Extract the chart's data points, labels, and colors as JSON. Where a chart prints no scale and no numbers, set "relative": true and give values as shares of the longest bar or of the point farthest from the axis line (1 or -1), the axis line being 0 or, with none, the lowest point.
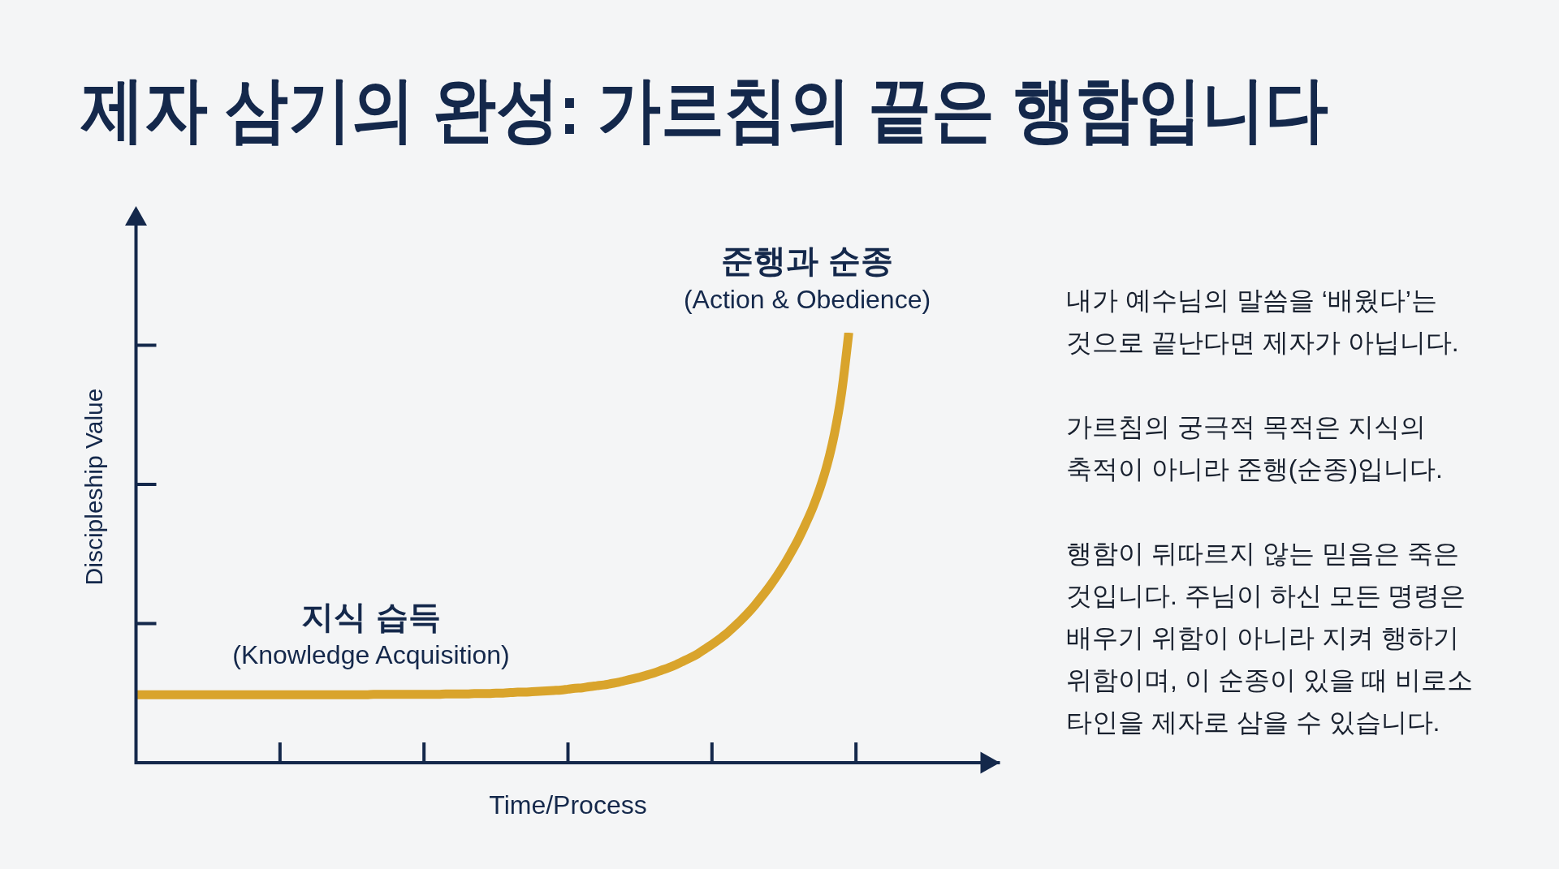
{
  "chart_data": {
    "type": "line",
    "title": "제자 삼기의 완성: 가르침의 끝은 행함입니다",
    "xlabel": "Time/Process",
    "ylabel": "Discipleship Value",
    "relative": true,
    "marker": "none",
    "color": "#d9a42c",
    "categories": [
      null,
      null,
      null,
      null,
      null,
      null,
      null,
      null,
      null,
      null,
      null,
      null,
      null,
      null,
      null,
      null,
      null,
      null,
      null,
      null,
      null,
      null,
      null,
      null,
      null,
      null,
      null,
      null,
      null,
      null,
      null,
      null,
      null,
      null,
      null,
      null,
      null,
      null,
      null,
      null,
      null,
      null,
      null,
      null,
      null,
      null,
      null,
      null,
      null,
      null,
      null,
      null,
      null,
      null,
      null,
      null,
      null,
      null,
      null,
      null,
      null,
      null,
      null,
      null,
      null,
      null,
      null,
      null,
      null,
      null,
      null,
      null,
      null,
      null,
      null,
      null,
      null,
      null,
      null,
      null,
      null,
      null,
      null,
      null,
      null,
      null,
      null,
      null,
      null,
      null,
      null,
      null,
      null,
      null,
      null,
      null,
      null,
      null,
      null,
      null,
      null,
      null,
      null,
      null,
      null,
      null,
      null,
      null,
      null,
      null,
      null,
      null,
      null,
      null,
      null,
      null,
      null,
      null,
      null,
      null,
      null
    ],
    "values": [
      0.158,
      0.158,
      0.158,
      0.158,
      0.158,
      0.158,
      0.158,
      0.158,
      0.158,
      0.158,
      0.158,
      0.158,
      0.158,
      0.158,
      0.158,
      0.158,
      0.158,
      0.158,
      0.158,
      0.158,
      0.158,
      0.158,
      0.158,
      0.158,
      0.158,
      0.158,
      0.158,
      0.158,
      0.158,
      0.158,
      0.158,
      0.158,
      0.158,
      0.159,
      0.159,
      0.159,
      0.159,
      0.159,
      0.159,
      0.159,
      0.159,
      0.159,
      0.159,
      0.16,
      0.16,
      0.16,
      0.16,
      0.161,
      0.161,
      0.161,
      0.162,
      0.162,
      0.163,
      0.164,
      0.164,
      0.165,
      0.166,
      0.167,
      0.168,
      0.169,
      0.171,
      0.173,
      0.174,
      0.177,
      0.179,
      0.181,
      0.184,
      0.187,
      0.191,
      0.195,
      0.199,
      0.204,
      0.209,
      0.215,
      0.221,
      0.228,
      0.236,
      0.244,
      0.253,
      0.264,
      0.275,
      0.287,
      0.3,
      0.315,
      0.331,
      0.348,
      0.367,
      0.388,
      0.41,
      0.434,
      0.46,
      0.489,
      0.52,
      0.555,
      0.593,
      0.638,
      0.693,
      0.764,
      0.86,
      1,
      null,
      null,
      null,
      null,
      null,
      null,
      null,
      null,
      null,
      null,
      null,
      null,
      null,
      null,
      null,
      null,
      null,
      null,
      null,
      null,
      null
    ],
    "annotations": [
      "준행과 순종",
      "(Action & Obedience)",
      "지식 습득",
      "(Knowledge Acquisition)",
      "내가 예수님의 말씀을 ‘배웠다’는\n것으로 끝난다면 제자가 아닙니다.",
      "가르침의 궁극적 목적은 지식의\n축적이 아니라 준행(순종)입니다.",
      "행함이 뒤따르지 않는 믿음은 죽은\n것입니다. 주님이 하신 모든 명령은\n배우기 위함이 아니라 지켜 행하기\n위함이며, 이 순종이 있을 때 비로소\n타인을 제자로 삼을 수 있습니다."
    ]
  }
}
